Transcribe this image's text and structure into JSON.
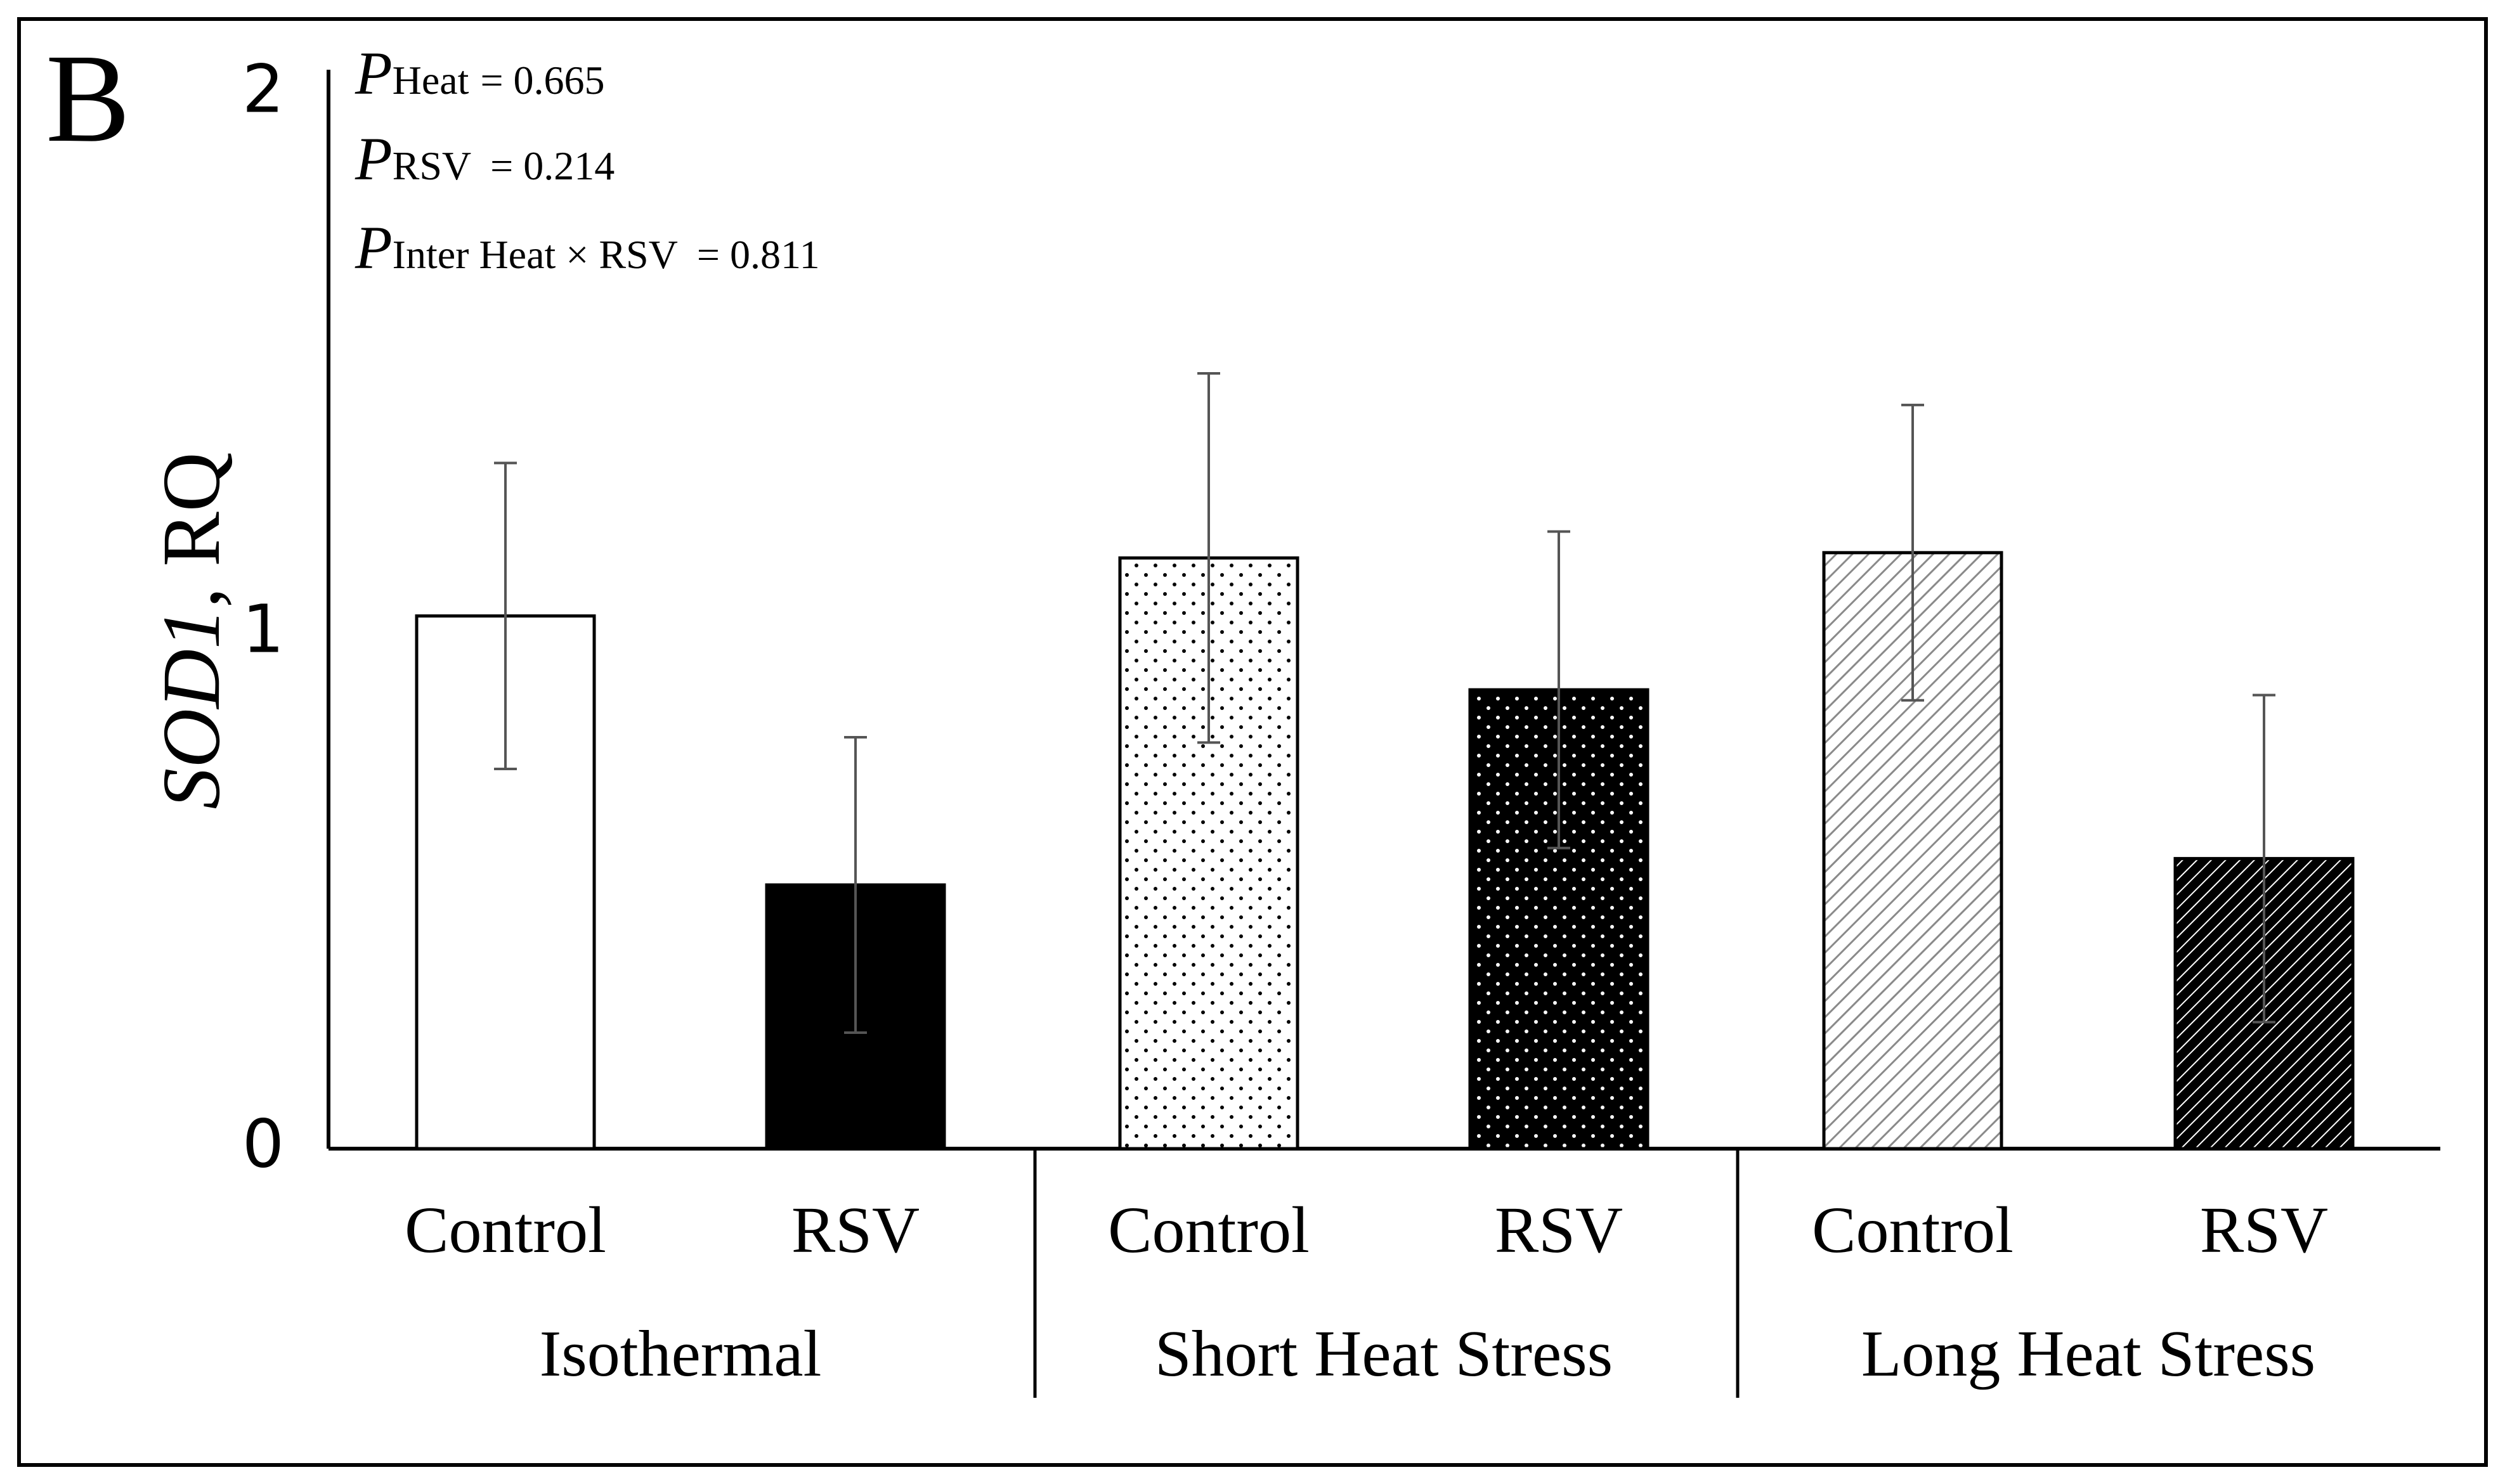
{
  "panel_label": "B",
  "stats": {
    "heat": {
      "p": "P",
      "sub": "Heat",
      "value": "= 0.665"
    },
    "rsv": {
      "p": "P",
      "sub": "RSV",
      "value": "= 0.214"
    },
    "inter": {
      "p": "P",
      "sub": "Inter Heat × RSV",
      "value": "= 0.811"
    }
  },
  "colors": {
    "black": "#000000",
    "white": "#ffffff",
    "stroke": "#000000",
    "error": "#555555",
    "light_hatch": "#8a8a8a"
  },
  "chart_data": {
    "type": "bar",
    "title": "",
    "ylabel_italic": "SOD1",
    "ylabel_rest": ", RQ",
    "ylim": [
      0,
      2
    ],
    "yticks": [
      0,
      1,
      2
    ],
    "grid": false,
    "groups": [
      "Isothermal",
      "Short Heat Stress",
      "Long Heat Stress"
    ],
    "categories": [
      "Control",
      "RSV",
      "Control",
      "RSV",
      "Control",
      "RSV"
    ],
    "values": [
      1.01,
      0.5,
      1.12,
      0.87,
      1.13,
      0.55
    ],
    "errors": [
      0.29,
      0.28,
      0.35,
      0.3,
      0.28,
      0.31
    ],
    "patterns": [
      "white",
      "black",
      "light-dots",
      "dark-dots",
      "light-hatch",
      "dark-hatch"
    ]
  }
}
